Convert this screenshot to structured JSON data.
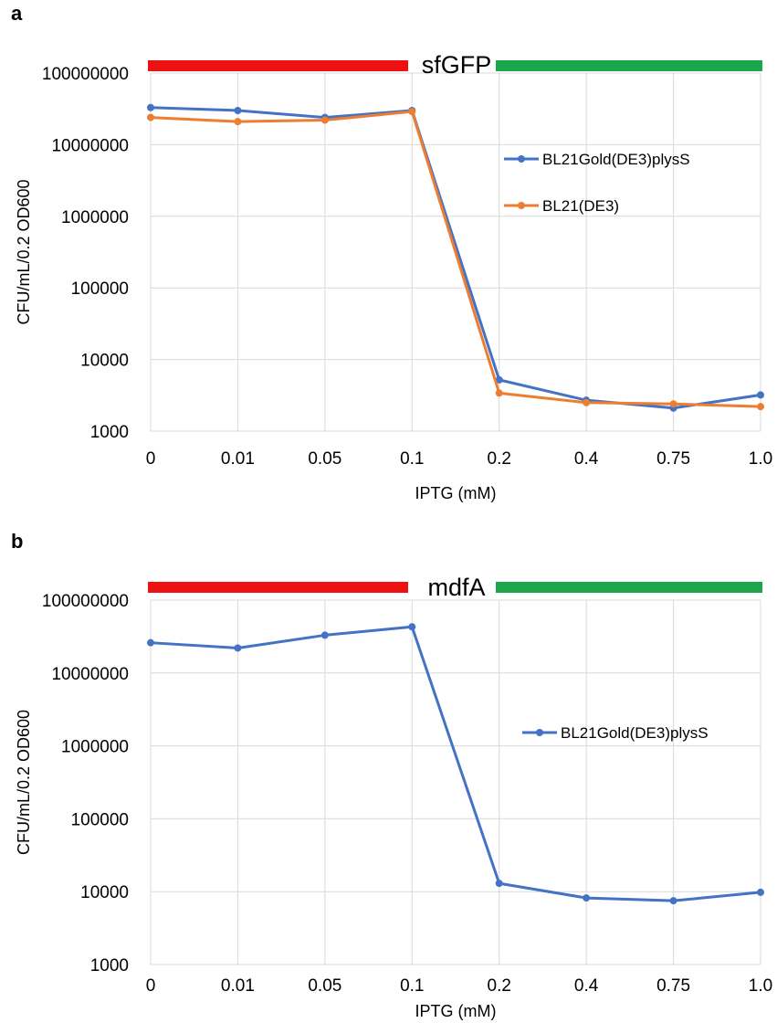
{
  "chart_data": [
    {
      "panel_letter": "a",
      "type": "line",
      "title": "sfGFP",
      "bars": [
        {
          "from": "0",
          "to": "0.1",
          "color": "#ee1111"
        },
        {
          "from": "0.1",
          "to": "1.0",
          "color": "#1ca64c"
        }
      ],
      "categories": [
        "0",
        "0.01",
        "0.05",
        "0.1",
        "0.2",
        "0.4",
        "0.75",
        "1.0"
      ],
      "xlabel": "IPTG (mM)",
      "ylabel": "CFU/mL/0.2 OD600",
      "yscale": "log",
      "ylim": [
        1000,
        100000000
      ],
      "yticks": [
        "1000",
        "10000",
        "100000",
        "1000000",
        "10000000",
        "100000000"
      ],
      "grid": true,
      "legend_position": "right",
      "series": [
        {
          "name": "BL21Gold(DE3)plysS",
          "color": "#4472c4",
          "values": [
            33000000,
            30000000,
            24000000,
            30000000,
            5200,
            2700,
            2100,
            3200
          ]
        },
        {
          "name": "BL21(DE3)",
          "color": "#ed7d31",
          "values": [
            24000000,
            21000000,
            22000000,
            29000000,
            3400,
            2500,
            2400,
            2200
          ]
        }
      ]
    },
    {
      "panel_letter": "b",
      "type": "line",
      "title": "mdfA",
      "bars": [
        {
          "from": "0",
          "to": "0.1",
          "color": "#ee1111"
        },
        {
          "from": "0.1",
          "to": "1.0",
          "color": "#1ca64c"
        }
      ],
      "categories": [
        "0",
        "0.01",
        "0.05",
        "0.1",
        "0.2",
        "0.4",
        "0.75",
        "1.0"
      ],
      "xlabel": "IPTG (mM)",
      "ylabel": "CFU/mL/0.2 OD600",
      "yscale": "log",
      "ylim": [
        1000,
        100000000
      ],
      "yticks": [
        "1000",
        "10000",
        "100000",
        "1000000",
        "10000000",
        "100000000"
      ],
      "grid": true,
      "legend_position": "right",
      "series": [
        {
          "name": "BL21Gold(DE3)plysS",
          "color": "#4472c4",
          "values": [
            26000000,
            22000000,
            33000000,
            43000000,
            13000,
            8200,
            7500,
            9800
          ]
        }
      ]
    }
  ]
}
